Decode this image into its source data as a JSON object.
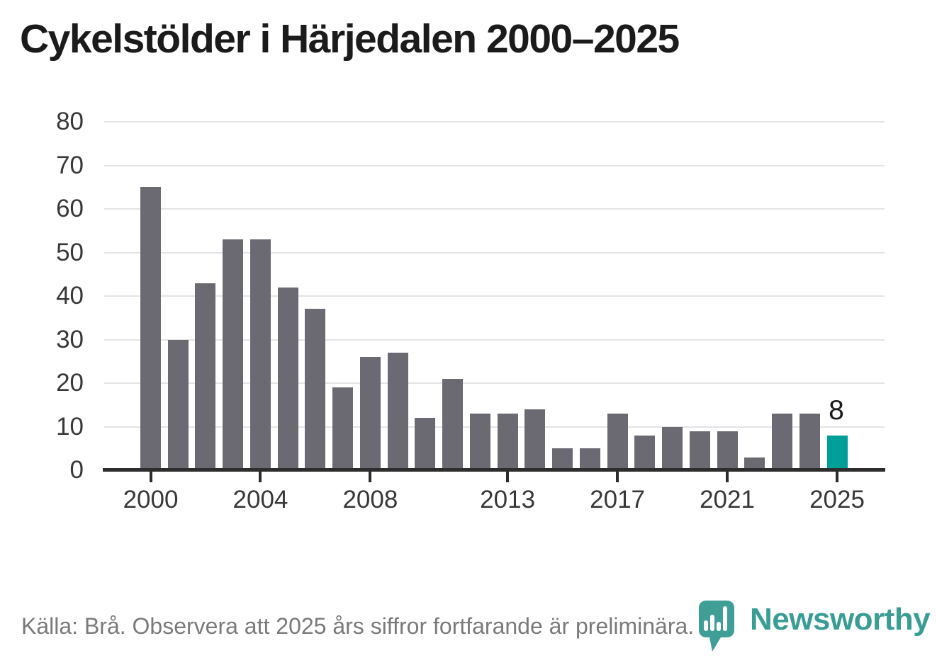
{
  "title": "Cykelstölder i Härjedalen 2000–2025",
  "footer": {
    "source_note": "Källa: Brå. Observera att 2025 års siffror fortfarande är preliminära."
  },
  "branding": {
    "name": "Newsworthy",
    "icon": "speech-bubble-bar-chart-icon",
    "color": "#3a9d94"
  },
  "chart_data": {
    "type": "bar",
    "title": "Cykelstölder i Härjedalen 2000–2025",
    "x": [
      2000,
      2001,
      2002,
      2003,
      2004,
      2005,
      2006,
      2007,
      2008,
      2009,
      2010,
      2011,
      2012,
      2013,
      2014,
      2015,
      2016,
      2017,
      2018,
      2019,
      2020,
      2021,
      2022,
      2023,
      2024,
      2025
    ],
    "values": [
      65,
      30,
      43,
      53,
      53,
      42,
      37,
      19,
      26,
      27,
      12,
      21,
      13,
      13,
      14,
      5,
      5,
      13,
      8,
      10,
      9,
      9,
      3,
      13,
      13,
      8
    ],
    "highlight": {
      "year": 2025,
      "value": 8,
      "label": "8",
      "color": "#00a099"
    },
    "bar_color": "#6b6a73",
    "xlabel": "",
    "ylabel": "",
    "ylim": [
      0,
      80
    ],
    "yticks": [
      0,
      10,
      20,
      30,
      40,
      50,
      60,
      70,
      80
    ],
    "xticks": [
      2000,
      2004,
      2008,
      2013,
      2017,
      2021,
      2025
    ],
    "xtick_labels": [
      "2000",
      "2004",
      "2008",
      "2013",
      "2017",
      "2021",
      "2025"
    ],
    "grid": true,
    "legend": false
  }
}
